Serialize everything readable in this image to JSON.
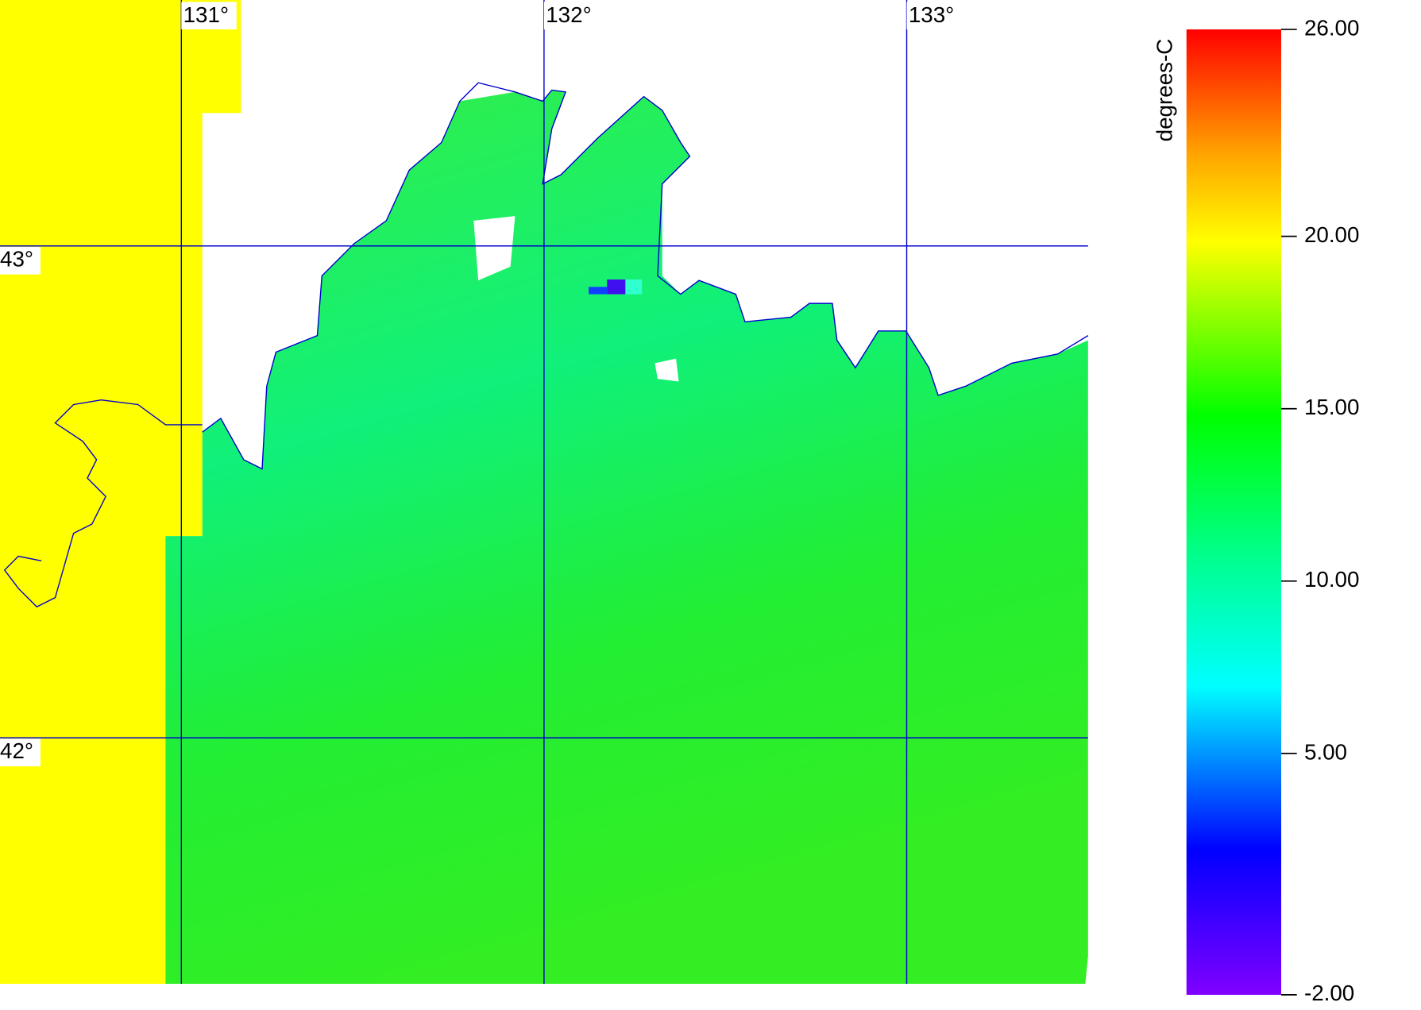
{
  "map": {
    "lonlim": [
      130.5,
      133.5
    ],
    "latlim": [
      41.5,
      43.5
    ],
    "lon_ticks": [
      {
        "value": 131,
        "label": "131°"
      },
      {
        "value": 132,
        "label": "132°"
      },
      {
        "value": 133,
        "label": "133°"
      }
    ],
    "lat_ticks": [
      {
        "value": 43,
        "label": "43°"
      },
      {
        "value": 42,
        "label": "42°"
      }
    ]
  },
  "colorbar": {
    "label": "degrees-C",
    "range": [
      -2,
      26
    ],
    "ticks": [
      {
        "value": 26,
        "label": "26.00"
      },
      {
        "value": 20,
        "label": "20.00"
      },
      {
        "value": 15,
        "label": "15.00"
      },
      {
        "value": 10,
        "label": "10.00"
      },
      {
        "value": 5,
        "label": "5.00"
      },
      {
        "value": -2,
        "label": "-2.00"
      }
    ]
  }
}
